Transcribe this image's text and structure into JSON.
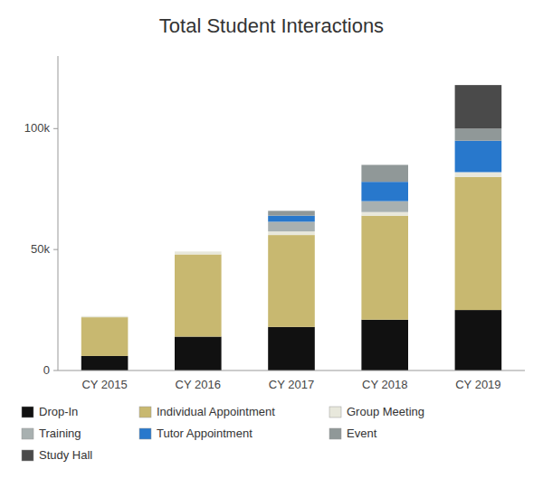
{
  "chart_data": {
    "type": "bar",
    "stacked": true,
    "title": "Total Student Interactions",
    "categories": [
      "CY 2015",
      "CY 2016",
      "CY 2017",
      "CY 2018",
      "CY 2019"
    ],
    "series": [
      {
        "name": "Drop-In",
        "color": "#111111",
        "values": [
          6000,
          14000,
          18000,
          21000,
          25000
        ]
      },
      {
        "name": "Individual Appointment",
        "color": "#c8b870",
        "values": [
          16000,
          34000,
          38000,
          43000,
          55000
        ]
      },
      {
        "name": "Group Meeting",
        "color": "#e8e8dc",
        "values": [
          500,
          1200,
          1500,
          1500,
          2000
        ]
      },
      {
        "name": "Training",
        "color": "#a8b0b0",
        "values": [
          0,
          0,
          4000,
          4500,
          0
        ]
      },
      {
        "name": "Tutor Appointment",
        "color": "#2878cc",
        "values": [
          0,
          0,
          2500,
          8000,
          13000
        ]
      },
      {
        "name": "Event",
        "color": "#909898",
        "values": [
          0,
          0,
          2000,
          7000,
          5000
        ]
      },
      {
        "name": "Study Hall",
        "color": "#4a4a4a",
        "values": [
          0,
          0,
          0,
          0,
          18000
        ]
      }
    ],
    "ylim": [
      0,
      130000
    ],
    "yticks": [
      0,
      {
        "value": 50000,
        "label": "50k"
      },
      {
        "value": 100000,
        "label": "100k"
      }
    ],
    "grid": false,
    "legend": "bottom"
  }
}
